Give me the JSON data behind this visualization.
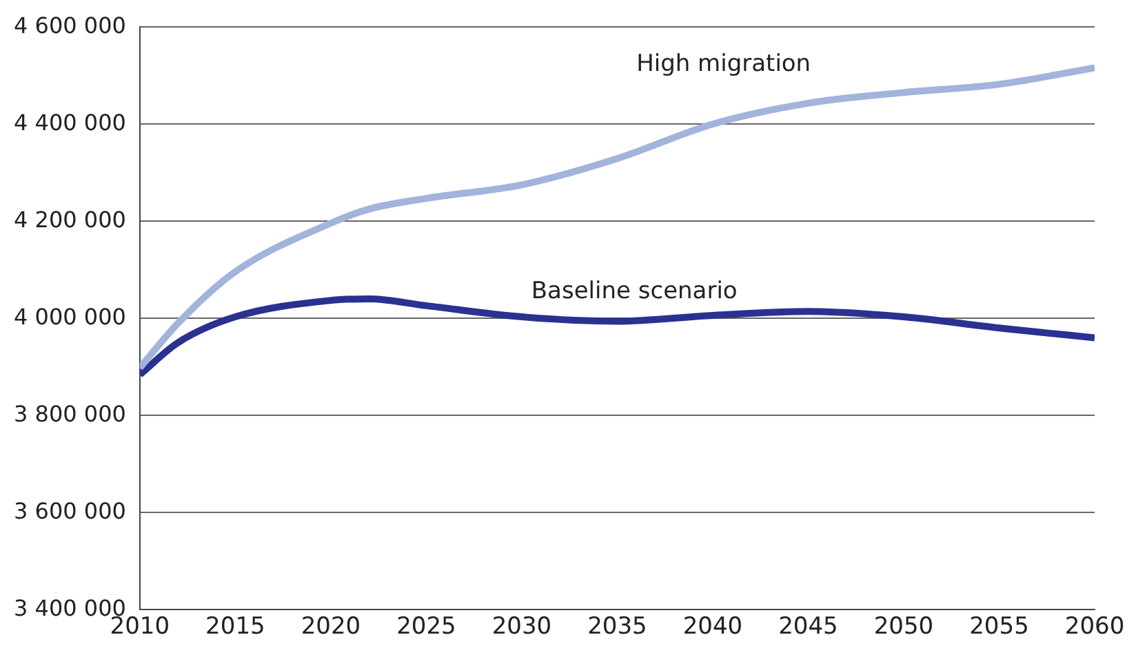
{
  "chart_data": {
    "type": "line",
    "x": [
      2010,
      2012,
      2015,
      2020,
      2022,
      2025,
      2030,
      2035,
      2040,
      2045,
      2050,
      2055,
      2060
    ],
    "series": [
      {
        "name": "High migration",
        "color": "#a2b4dc",
        "values": [
          3898000,
          3990000,
          4096000,
          4196000,
          4225000,
          4247000,
          4275000,
          4329000,
          4400000,
          4443000,
          4465000,
          4482000,
          4516000
        ]
      },
      {
        "name": "Baseline scenario",
        "color": "#2b3190",
        "values": [
          3884000,
          3950000,
          4003000,
          4037000,
          4040000,
          4026000,
          4003000,
          3994000,
          4006000,
          4014000,
          4003000,
          3980000,
          3960000
        ]
      }
    ],
    "xlim": [
      2010,
      2060
    ],
    "xticks": [
      2010,
      2015,
      2020,
      2025,
      2030,
      2035,
      2040,
      2045,
      2050,
      2055,
      2060
    ],
    "ylim": [
      3400000,
      4600000
    ],
    "yticks": [
      {
        "value": 3400000,
        "label": "3 400 000"
      },
      {
        "value": 3600000,
        "label": "3 600 000"
      },
      {
        "value": 3800000,
        "label": "3 800 000"
      },
      {
        "value": 4000000,
        "label": "4 000 000"
      },
      {
        "value": 4200000,
        "label": "4 200 000"
      },
      {
        "value": 4400000,
        "label": "4 400 000"
      },
      {
        "value": 4600000,
        "label": "4 600 000"
      }
    ],
    "grid": "y",
    "legend": false,
    "marker": "none",
    "line_style": "solid"
  }
}
